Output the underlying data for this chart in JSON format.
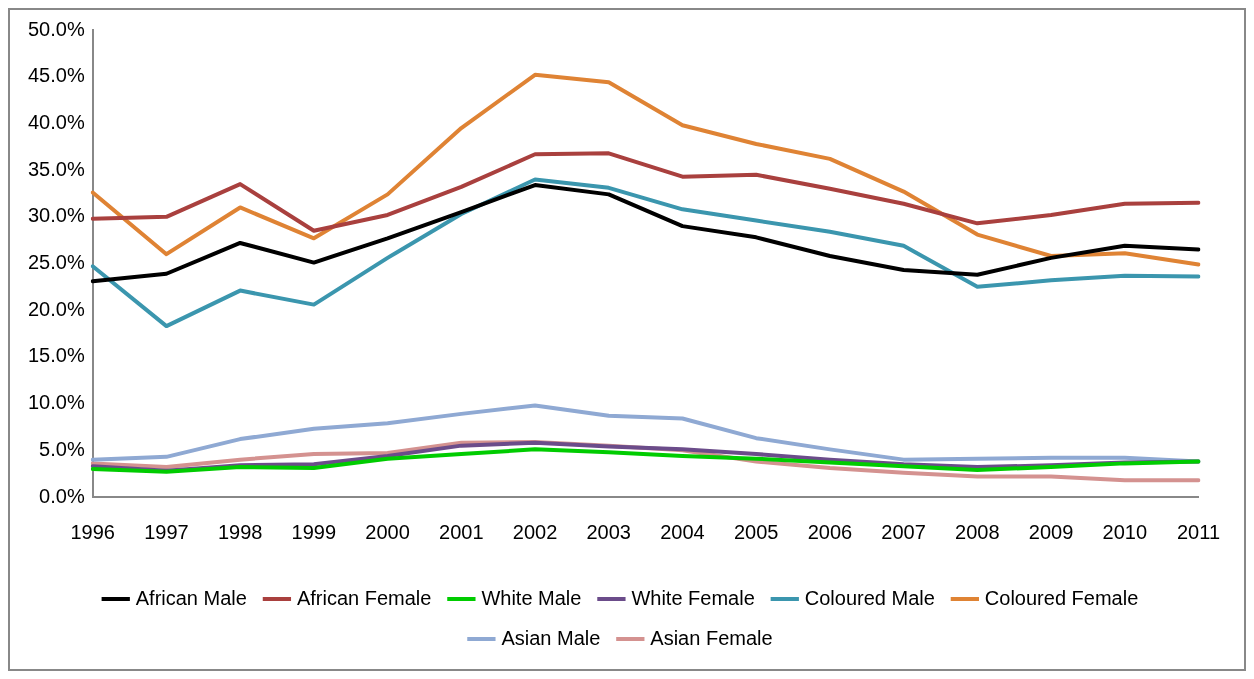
{
  "chart_data": {
    "type": "line",
    "categories": [
      "1996",
      "1997",
      "1998",
      "1999",
      "2000",
      "2001",
      "2002",
      "2003",
      "2004",
      "2005",
      "2006",
      "2007",
      "2008",
      "2009",
      "2010",
      "2011"
    ],
    "series": [
      {
        "name": "African Male",
        "color": "#000000",
        "values": [
          23.1,
          23.9,
          27.2,
          25.1,
          27.7,
          30.5,
          33.4,
          32.4,
          29.0,
          27.8,
          25.8,
          24.3,
          23.8,
          25.6,
          26.9,
          26.5
        ]
      },
      {
        "name": "African Female",
        "color": "#a9403e",
        "values": [
          29.8,
          30.0,
          33.5,
          28.5,
          30.2,
          33.2,
          36.7,
          36.8,
          34.3,
          34.5,
          33.0,
          31.4,
          29.3,
          30.2,
          31.4,
          31.5
        ]
      },
      {
        "name": "White Male",
        "color": "#00cc00",
        "values": [
          3.0,
          2.7,
          3.2,
          3.1,
          4.1,
          4.6,
          5.1,
          4.8,
          4.4,
          4.1,
          3.7,
          3.3,
          2.9,
          3.2,
          3.6,
          3.8
        ]
      },
      {
        "name": "White Female",
        "color": "#6b4c8a",
        "values": [
          3.3,
          2.8,
          3.4,
          3.5,
          4.4,
          5.5,
          5.8,
          5.4,
          5.1,
          4.6,
          4.0,
          3.5,
          3.2,
          3.4,
          3.7,
          3.8
        ]
      },
      {
        "name": "Coloured Male",
        "color": "#3b96ae",
        "values": [
          24.7,
          18.3,
          22.1,
          20.6,
          25.6,
          30.3,
          34.0,
          33.1,
          30.8,
          29.6,
          28.4,
          26.9,
          22.5,
          23.2,
          23.7,
          23.6
        ]
      },
      {
        "name": "Coloured Female",
        "color": "#df8334",
        "values": [
          32.6,
          26.0,
          31.0,
          27.7,
          32.4,
          39.5,
          45.2,
          44.4,
          39.8,
          37.8,
          36.2,
          32.7,
          28.1,
          25.8,
          26.1,
          24.9
        ]
      },
      {
        "name": "Asian Male",
        "color": "#8fa9d3",
        "values": [
          4.0,
          4.3,
          6.2,
          7.3,
          7.9,
          8.9,
          9.8,
          8.7,
          8.4,
          6.3,
          5.1,
          4.0,
          4.1,
          4.2,
          4.2,
          3.8
        ]
      },
      {
        "name": "Asian Female",
        "color": "#d49290",
        "values": [
          3.6,
          3.2,
          4.0,
          4.6,
          4.7,
          5.8,
          5.9,
          5.5,
          5.0,
          3.8,
          3.1,
          2.6,
          2.2,
          2.2,
          1.8,
          1.8
        ]
      }
    ],
    "ylim": [
      0,
      50
    ],
    "yticks": [
      {
        "value": 0,
        "label": "0.0%"
      },
      {
        "value": 5,
        "label": "5.0%"
      },
      {
        "value": 10,
        "label": "10.0%"
      },
      {
        "value": 15,
        "label": "15.0%"
      },
      {
        "value": 20,
        "label": "20.0%"
      },
      {
        "value": 25,
        "label": "25.0%"
      },
      {
        "value": 30,
        "label": "30.0%"
      },
      {
        "value": 35,
        "label": "35.0%"
      },
      {
        "value": 40,
        "label": "40.0%"
      },
      {
        "value": 45,
        "label": "45.0%"
      },
      {
        "value": 50,
        "label": "50.0%"
      }
    ],
    "grid": false,
    "legend": "bottom",
    "marker": "none",
    "line_style": "solid"
  }
}
